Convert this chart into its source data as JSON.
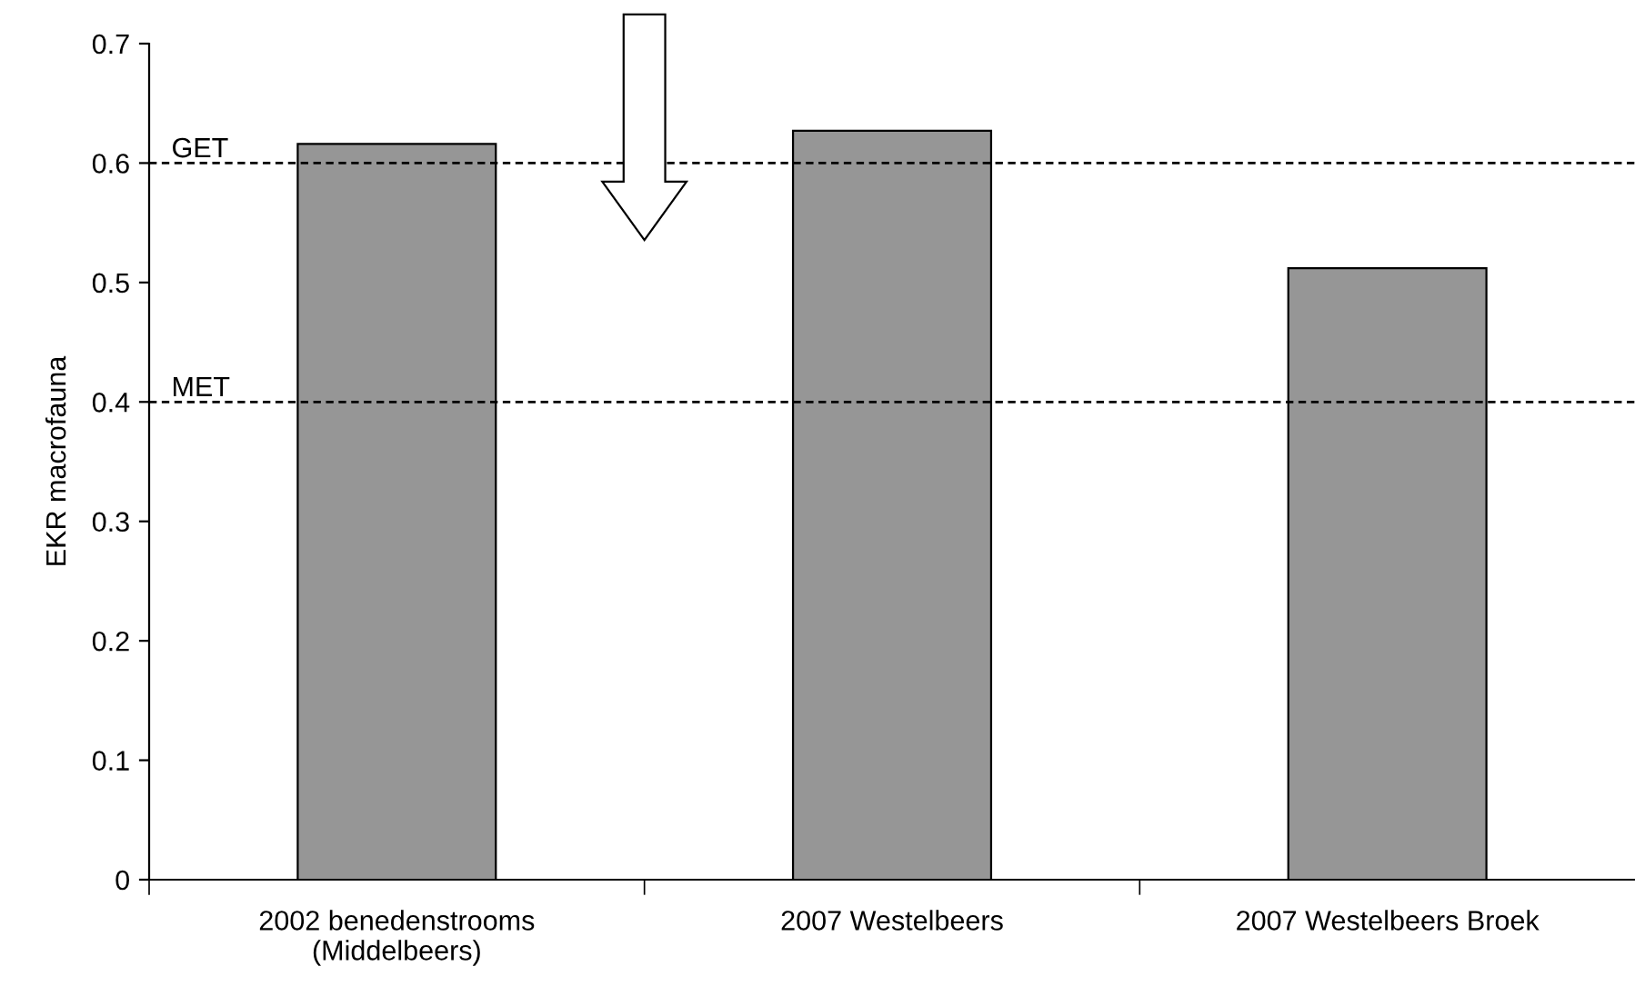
{
  "chart_data": {
    "type": "bar",
    "ylabel": "EKR macrofauna",
    "categories": [
      "2002 benedenstrooms\n(Middelbeers)",
      "2007 Westelbeers",
      "2007 Westelbeers Broek"
    ],
    "values": [
      0.616,
      0.627,
      0.512
    ],
    "color": "#969696",
    "ylim": [
      0,
      0.7
    ],
    "yticks": [
      0,
      0.1,
      0.2,
      0.3,
      0.4,
      0.5,
      0.6,
      0.7
    ],
    "ref_lines": [
      {
        "axis": "y",
        "value": 0.6,
        "label": "GET",
        "color": "#000000",
        "line_style": "dashed"
      },
      {
        "axis": "y",
        "value": 0.4,
        "label": "MET",
        "color": "#000000",
        "line_style": "dashed"
      }
    ],
    "grid": false,
    "legend": false
  }
}
